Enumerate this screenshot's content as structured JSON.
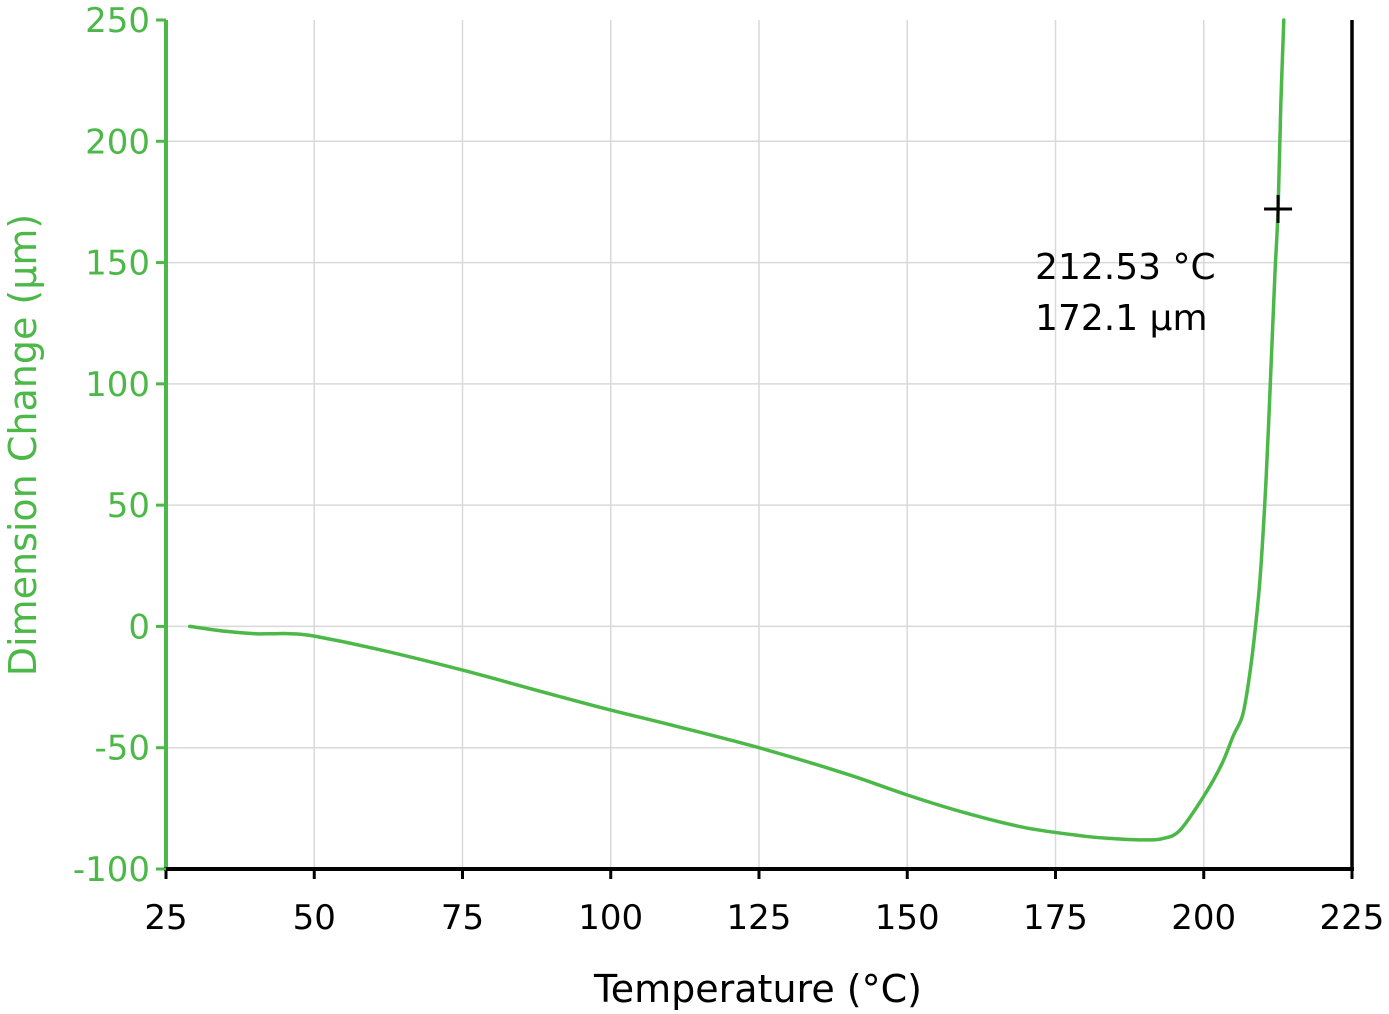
{
  "chart_data": {
    "type": "line",
    "xlabel": "Temperature (°C)",
    "ylabel": "Dimension Change (µm)",
    "xlim": [
      25,
      225
    ],
    "ylim": [
      -100,
      250
    ],
    "x_ticks": [
      25,
      50,
      75,
      100,
      125,
      150,
      175,
      200,
      225
    ],
    "y_ticks": [
      -100,
      -50,
      0,
      50,
      100,
      150,
      200,
      250
    ],
    "x_tick_labels": [
      "25",
      "50",
      "75",
      "100",
      "125",
      "150",
      "175",
      "200",
      "225"
    ],
    "y_tick_labels": [
      "-100",
      "-50",
      "0",
      "50",
      "100",
      "150",
      "200",
      "250"
    ],
    "grid": true,
    "colors": {
      "series": "#4cb848",
      "ylabel": "#4cb848",
      "yaxis": "#4cb848",
      "xaxis": "#000000",
      "grid": "#d9d9d9",
      "annotation": "#000000"
    },
    "series": [
      {
        "x": [
          29,
          35,
          40,
          43,
          46,
          50,
          60,
          75,
          90,
          100,
          110,
          125,
          140,
          150,
          160,
          170,
          180,
          185,
          190,
          193,
          196,
          200,
          203,
          205,
          206.5,
          207.5,
          208.5,
          209.5,
          210.5,
          211.3,
          212,
          212.53,
          213,
          213.5
        ],
        "y": [
          0,
          -2,
          -3,
          -3,
          -3,
          -4,
          -9,
          -18,
          -28,
          -34.5,
          -40.5,
          -50,
          -61,
          -69.5,
          -77,
          -83,
          -86.5,
          -87.5,
          -88,
          -87.5,
          -84,
          -70,
          -57,
          -45,
          -37,
          -24,
          -5,
          20,
          60,
          105,
          145,
          172.1,
          215,
          250
        ]
      }
    ],
    "annotations": [
      {
        "x": 212.53,
        "y": 172.1,
        "marker": "cross",
        "lines": [
          "212.53 °C",
          "172.1 µm"
        ]
      }
    ]
  }
}
